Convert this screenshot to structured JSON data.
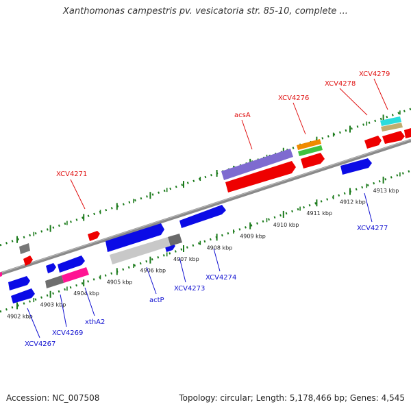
{
  "title": "Xanthomonas campestris pv. vesicatoria str. 85-10, complete ...",
  "footer": {
    "accession": "Accession: NC_007508",
    "topology": "Topology: circular; Length: 5,178,466 bp; Genes: 4,545"
  },
  "colors": {
    "backbone": "#7f7f7f",
    "forward_gene": "#0b0be6",
    "reverse_gene": "#ee0000",
    "tick": "#1a7a1a",
    "upper_label": "#e01010",
    "lower_label": "#1010d0"
  },
  "ticks": [
    {
      "label": "4902 kbp"
    },
    {
      "label": "4903 kbp"
    },
    {
      "label": "4904 kbp"
    },
    {
      "label": "4905 kbp"
    },
    {
      "label": "4906 kbp"
    },
    {
      "label": "4907 kbp"
    },
    {
      "label": "4908 kbp"
    },
    {
      "label": "4909 kbp"
    },
    {
      "label": "4910 kbp"
    },
    {
      "label": "4911 kbp"
    },
    {
      "label": "4912 kbp"
    },
    {
      "label": "4913 kbp"
    }
  ],
  "upper_genes": [
    {
      "name": "XCV4271"
    },
    {
      "name": "acsA"
    },
    {
      "name": "XCV4276"
    },
    {
      "name": "XCV4278"
    },
    {
      "name": "XCV4279"
    }
  ],
  "lower_genes": [
    {
      "name": "XCV4267"
    },
    {
      "name": "XCV4269"
    },
    {
      "name": "xthA2"
    },
    {
      "name": "actP"
    },
    {
      "name": "XCV4273"
    },
    {
      "name": "XCV4274"
    },
    {
      "name": "XCV4277"
    }
  ]
}
